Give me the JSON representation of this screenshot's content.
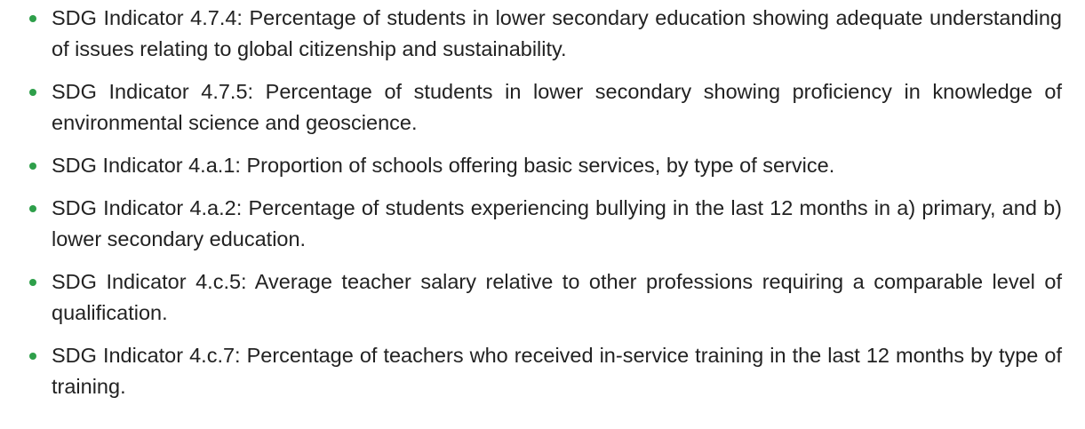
{
  "list": {
    "items": [
      "SDG Indicator 4.7.4: Percentage of students in lower secondary education showing adequate understanding of issues relating to global citizenship and sustainability.",
      "SDG Indicator 4.7.5: Percentage of students in lower secondary showing proficiency in knowledge of environmental science and geoscience.",
      "SDG Indicator 4.a.1: Proportion of schools offering basic services, by type of service.",
      "SDG Indicator 4.a.2: Percentage of students experiencing bullying in the last 12 months in a) primary, and b) lower secondary education.",
      "SDG Indicator 4.c.5: Average teacher salary relative to other professions requiring a comparable level of qualification.",
      "SDG Indicator 4.c.7: Percentage of teachers who received in-service training in the last 12 months by type of training."
    ]
  }
}
